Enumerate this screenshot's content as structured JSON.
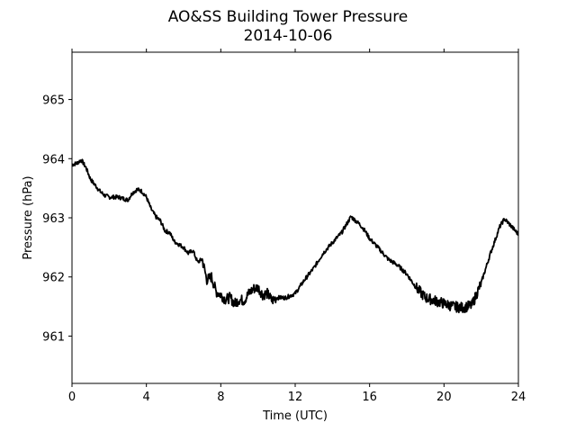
{
  "chart_data": {
    "type": "line",
    "title": "AO&SS Building Tower Pressure",
    "subtitle": "2014-10-06",
    "xlabel": "Time (UTC)",
    "ylabel": "Pressure (hPa)",
    "xlim": [
      0,
      24
    ],
    "ylim": [
      960.2,
      965.8
    ],
    "xticks": [
      0,
      4,
      8,
      12,
      16,
      20,
      24
    ],
    "yticks": [
      961,
      962,
      963,
      964,
      965
    ],
    "grid": false,
    "line_color": "#000000",
    "series": [
      {
        "x": [
          0,
          0.25,
          0.5,
          0.75,
          1.0,
          1.25,
          1.5,
          1.75,
          2.0,
          2.5,
          3.0,
          3.25,
          3.5,
          3.75,
          4.0,
          4.25,
          4.5,
          4.75,
          5.0,
          5.25,
          5.5,
          5.75,
          6.0,
          6.25,
          6.5,
          6.75,
          7.0,
          7.25,
          7.5,
          7.75,
          8.0,
          8.25,
          8.5,
          8.75,
          9.0,
          9.25,
          9.5,
          9.75,
          10.0,
          10.25,
          10.5,
          10.75,
          11.0,
          11.5,
          12.0,
          12.5,
          13.0,
          13.5,
          14.0,
          14.5,
          15.0,
          15.25,
          15.5,
          15.75,
          16.0,
          16.5,
          17.0,
          17.5,
          18.0,
          18.5,
          19.0,
          19.5,
          20.0,
          20.5,
          21.0,
          21.5,
          22.0,
          22.5,
          23.0,
          23.25,
          23.5,
          24.0
        ],
        "values": [
          963.9,
          963.92,
          963.98,
          963.85,
          963.65,
          963.55,
          963.45,
          963.38,
          963.35,
          963.35,
          963.3,
          963.42,
          963.48,
          963.45,
          963.35,
          963.15,
          963.02,
          962.95,
          962.78,
          962.75,
          962.6,
          962.55,
          962.5,
          962.4,
          962.45,
          962.25,
          962.3,
          961.95,
          962.0,
          961.75,
          961.7,
          961.62,
          961.65,
          961.55,
          961.62,
          961.6,
          961.72,
          961.8,
          961.82,
          961.7,
          961.72,
          961.6,
          961.65,
          961.65,
          961.72,
          961.95,
          962.15,
          962.4,
          962.58,
          962.75,
          963.02,
          962.95,
          962.88,
          962.78,
          962.65,
          962.48,
          962.3,
          962.2,
          962.05,
          961.82,
          961.65,
          961.6,
          961.55,
          961.5,
          961.48,
          961.52,
          961.9,
          962.4,
          962.85,
          962.98,
          962.9,
          962.72
        ]
      }
    ]
  }
}
